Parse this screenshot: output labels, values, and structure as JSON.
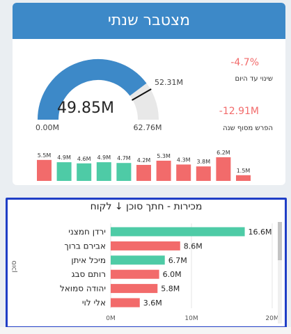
{
  "header": {
    "title": "מצטבר שנתי"
  },
  "gauge": {
    "value": 49.85,
    "value_label": "49.85M",
    "min_label": "0.00M",
    "max_label": "62.76M",
    "target_label": "52.31M",
    "min": 0,
    "max": 62.76,
    "target": 52.31,
    "colors": {
      "fill": "#3d89c8",
      "track": "#e8e8e8",
      "target": "#111111"
    }
  },
  "kpis": [
    {
      "value": "-4.7%",
      "label": "שינוי עד היום"
    },
    {
      "value": "-12.91M",
      "label": "הפרש מסוף שנה"
    }
  ],
  "monthly": {
    "labels": [
      "5.5M",
      "4.9M",
      "4.6M",
      "4.9M",
      "4.7M",
      "4.2M",
      "5.3M",
      "4.3M",
      "3.8M",
      "6.2M",
      "1.5M"
    ],
    "values": [
      5.5,
      4.9,
      4.6,
      4.9,
      4.7,
      4.2,
      5.3,
      4.3,
      3.8,
      6.2,
      1.5
    ],
    "colors": [
      "#f26b6b",
      "#4ecba6",
      "#4ecba6",
      "#4ecba6",
      "#4ecba6",
      "#f26b6b",
      "#f26b6b",
      "#f26b6b",
      "#f26b6b",
      "#f26b6b",
      "#f26b6b"
    ]
  },
  "chart_data": {
    "type": "bar",
    "orientation": "horizontal",
    "title": "מכירות - חתך סוכן ↓ לקוח",
    "ylabel": "סוכן",
    "categories": [
      "ירדן חמצני",
      "אבירם ברוך",
      "מיכל איתן",
      "רותם סבג",
      "יהודה סמואל",
      "אלי לוי"
    ],
    "values": [
      16.6,
      8.6,
      6.7,
      6.0,
      5.8,
      3.6
    ],
    "value_labels": [
      "16.6M",
      "8.6M",
      "6.7M",
      "6.0M",
      "5.8M",
      "3.6M"
    ],
    "colors": [
      "#4ecba6",
      "#f26b6b",
      "#4ecba6",
      "#f26b6b",
      "#f26b6b",
      "#f26b6b"
    ],
    "xlim": [
      0,
      20
    ],
    "xticks": [
      0,
      10,
      20
    ],
    "xtick_labels": [
      "0M",
      "10M",
      "20M"
    ]
  }
}
